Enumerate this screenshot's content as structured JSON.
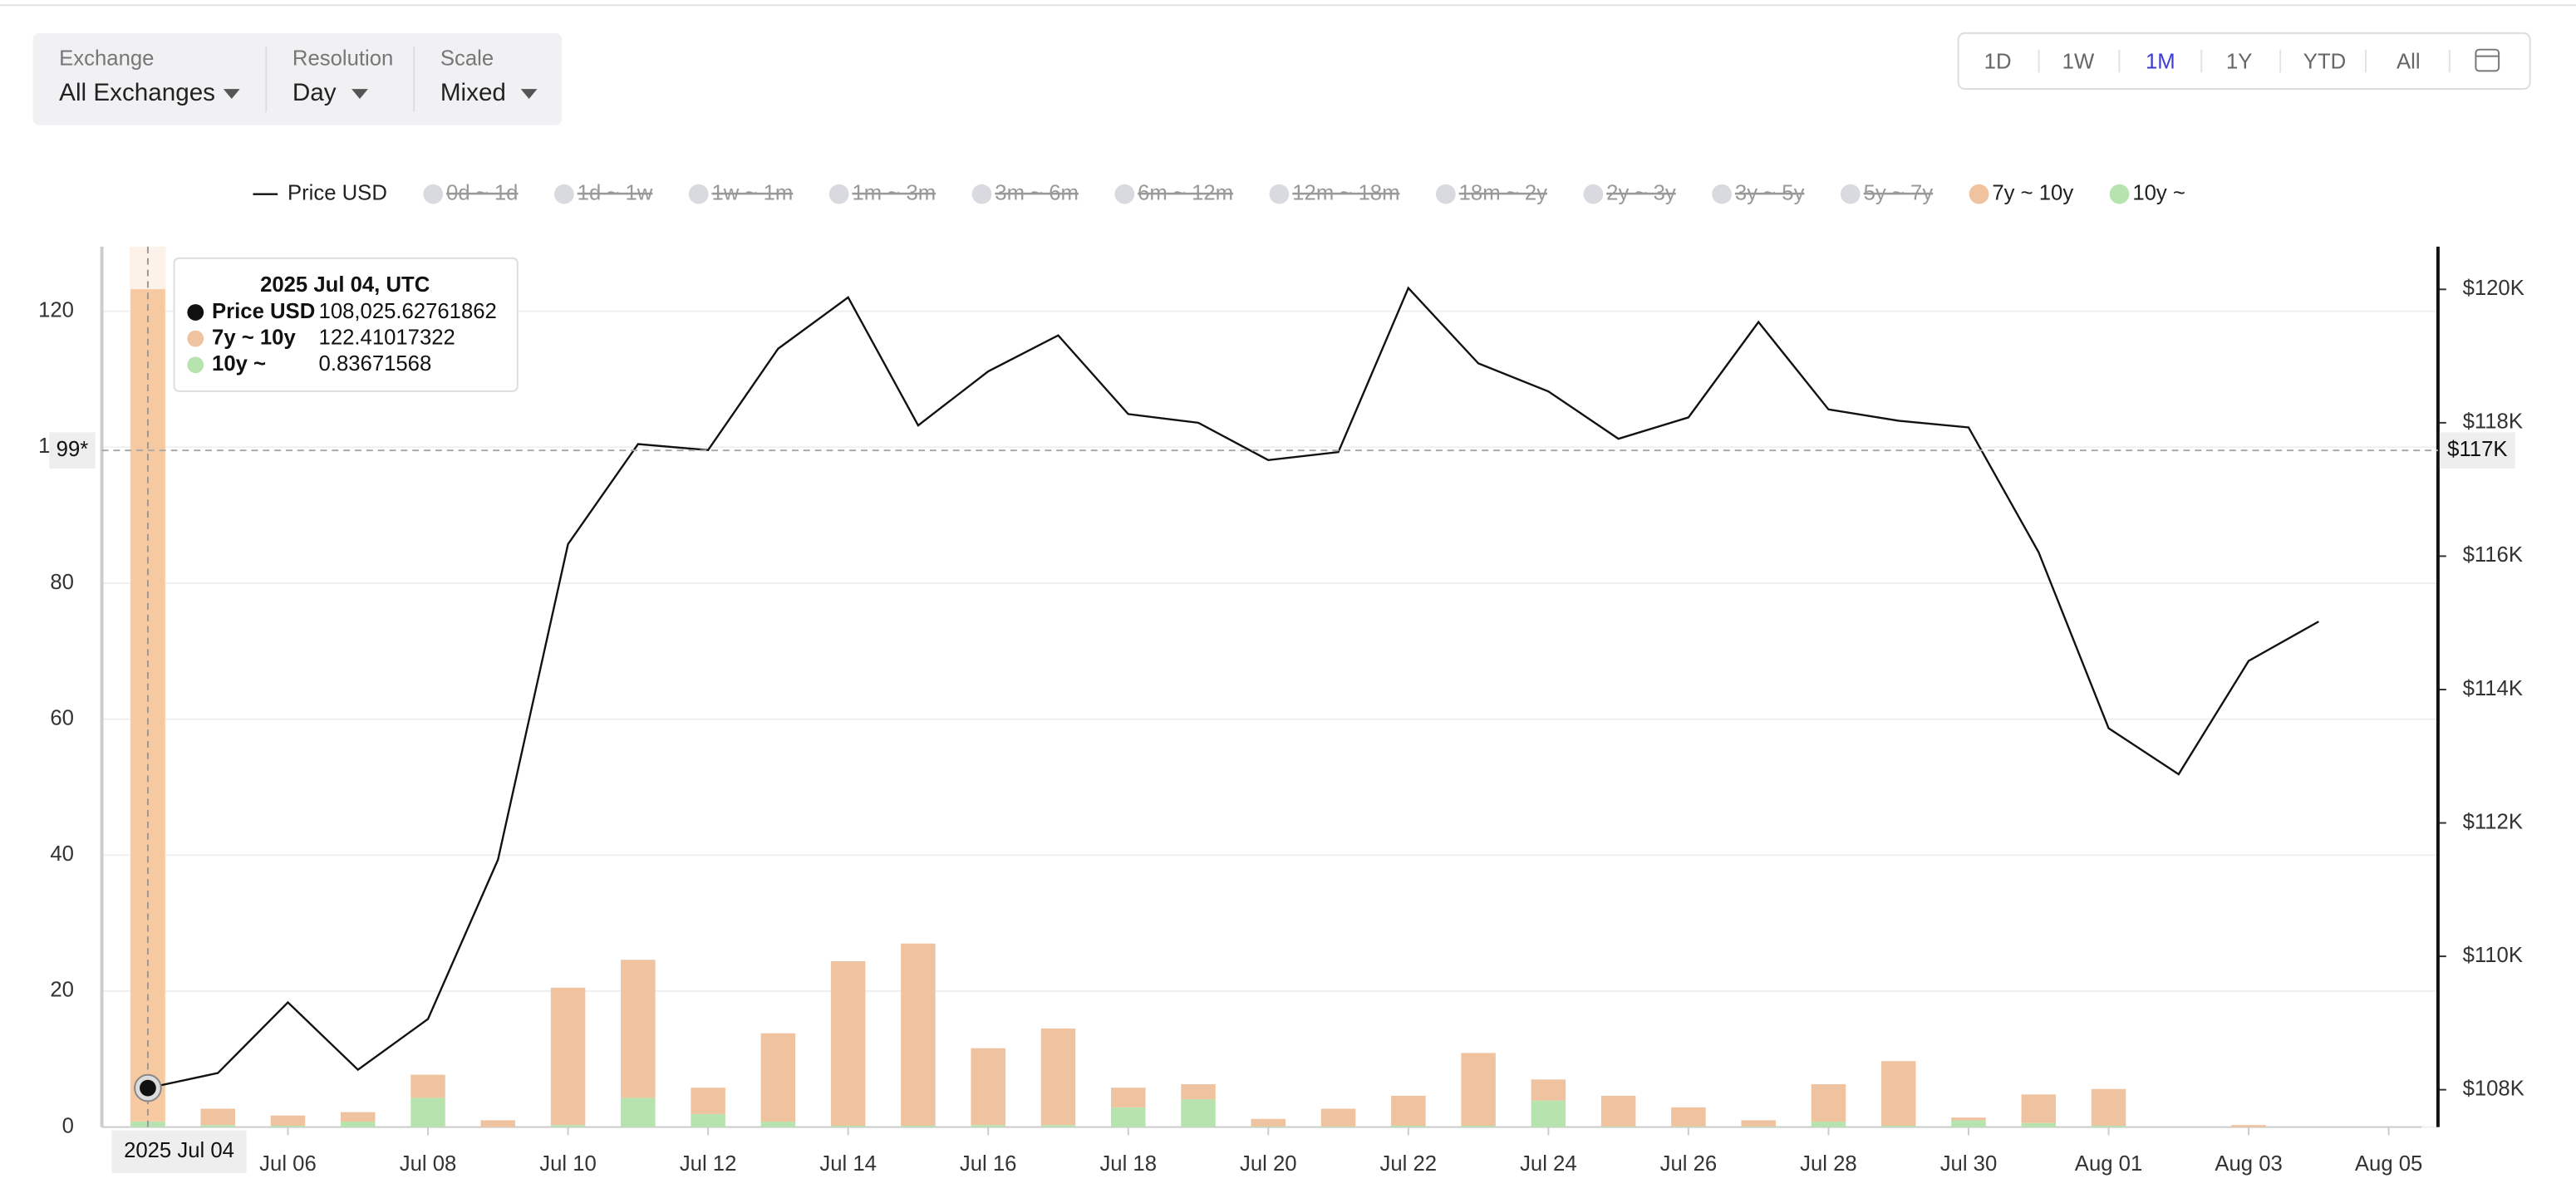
{
  "controls": {
    "exchange": {
      "label": "Exchange",
      "value": "All Exchanges"
    },
    "resolution": {
      "label": "Resolution",
      "value": "Day"
    },
    "scale": {
      "label": "Scale",
      "value": "Mixed"
    },
    "ranges": [
      "1D",
      "1W",
      "1M",
      "1Y",
      "YTD",
      "All"
    ],
    "active_range": "1M"
  },
  "chart_data": {
    "type": "combo",
    "categories": [
      "2025 Jul 04",
      null,
      "Jul 06",
      null,
      "Jul 08",
      null,
      "Jul 10",
      null,
      "Jul 12",
      null,
      "Jul 14",
      null,
      "Jul 16",
      null,
      "Jul 18",
      null,
      "Jul 20",
      null,
      "Jul 22",
      null,
      "Jul 24",
      null,
      "Jul 26",
      null,
      "Jul 28",
      null,
      "Jul 30",
      null,
      "Aug 01",
      null,
      "Aug 03",
      null,
      "Aug 05"
    ],
    "series": [
      {
        "name": "Price USD",
        "type": "line",
        "axis": "y2",
        "color": "#111111",
        "values": [
          108025.62761862,
          108250,
          109310,
          108300,
          109060,
          111450,
          116180,
          117680,
          117590,
          119110,
          119880,
          117960,
          118770,
          119310,
          118130,
          118000,
          117440,
          117560,
          120020,
          118890,
          118470,
          117760,
          118080,
          119510,
          118200,
          118030,
          117930,
          116060,
          113420,
          112730,
          114430,
          115020,
          null
        ]
      },
      {
        "name": "7y ~ 10y",
        "type": "bar",
        "color": "#efc3a0",
        "values": [
          122.41017322,
          2.4,
          1.5,
          1.4,
          3.4,
          1.0,
          20.2,
          20.3,
          3.9,
          13.0,
          24.2,
          26.8,
          11.3,
          14.2,
          2.9,
          2.2,
          1.1,
          2.6,
          4.4,
          10.7,
          3.1,
          4.5,
          2.8,
          0.9,
          5.5,
          9.5,
          0.4,
          4.2,
          5.4,
          0,
          0.3,
          0,
          null
        ]
      },
      {
        "name": "10y ~",
        "type": "bar",
        "color": "#b6e3ae",
        "values": [
          0.83671568,
          0.3,
          0.2,
          0.8,
          4.3,
          0,
          0.3,
          4.3,
          1.9,
          0.8,
          0.2,
          0.2,
          0.3,
          0.3,
          2.9,
          4.1,
          0.1,
          0.1,
          0.2,
          0.2,
          3.9,
          0.1,
          0.1,
          0.1,
          0.8,
          0.2,
          1.0,
          0.6,
          0.2,
          0,
          0,
          0,
          null
        ]
      }
    ],
    "hidden_series": [
      "0d ~ 1d",
      "1d ~ 1w",
      "1w ~ 1m",
      "1m ~ 3m",
      "3m ~ 6m",
      "6m ~ 12m",
      "12m ~ 18m",
      "18m ~ 2y",
      "2y ~ 3y",
      "3y ~ 5y",
      "5y ~ 7y"
    ],
    "stacked": true,
    "ylim": [
      0,
      129.5
    ],
    "yticks": [
      0,
      20,
      40,
      60,
      80,
      100,
      120
    ],
    "y2lim": [
      107440,
      120640
    ],
    "y2ticks": [
      {
        "value": 108000,
        "label": "$108K"
      },
      {
        "value": 110000,
        "label": "$110K"
      },
      {
        "value": 112000,
        "label": "$112K"
      },
      {
        "value": 114000,
        "label": "$114K"
      },
      {
        "value": 116000,
        "label": "$116K"
      },
      {
        "value": 118000,
        "label": "$118K"
      },
      {
        "value": 120000,
        "label": "$120K"
      }
    ],
    "grid": true,
    "crosshair": {
      "y_label": "99*",
      "y2_label": "$117K"
    },
    "tooltip": {
      "title": "2025 Jul 04, UTC",
      "values": [
        "108,025.62761862",
        "122.41017322",
        "0.83671568"
      ]
    }
  }
}
